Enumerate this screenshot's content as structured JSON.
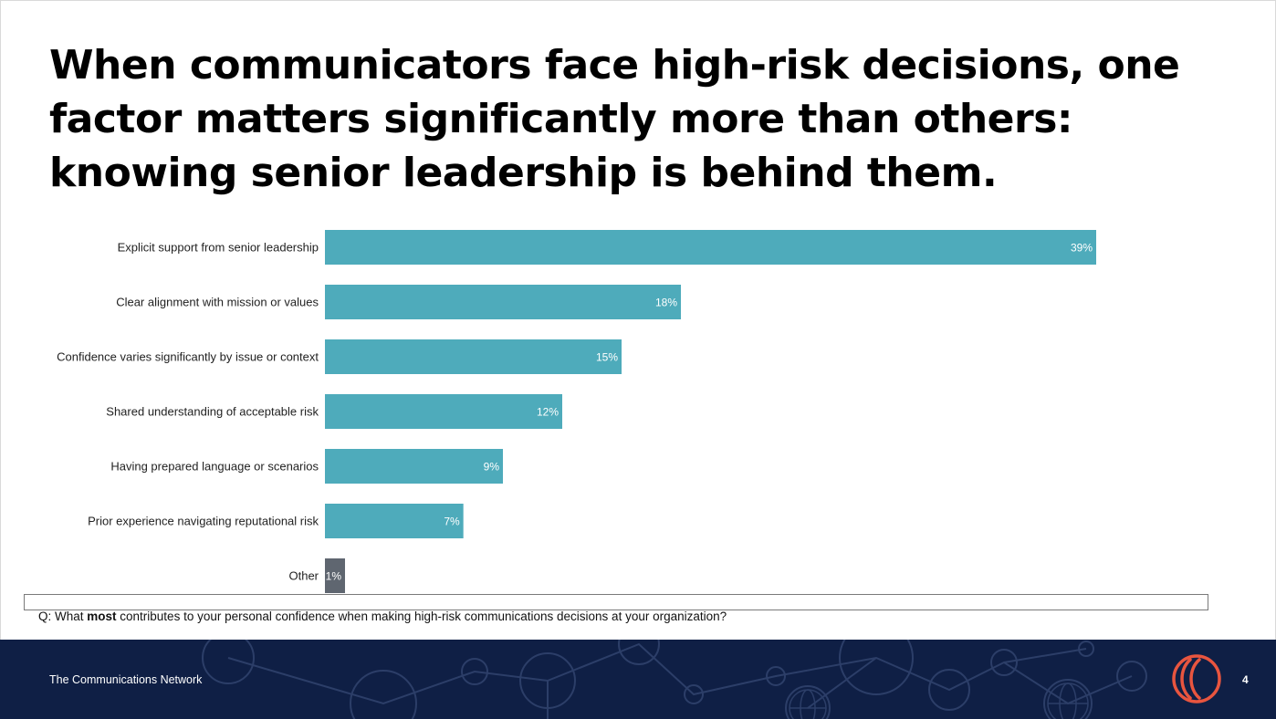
{
  "headline": "When communicators face high-risk decisions, one factor matters significantly more than others: knowing senior leadership is behind them.",
  "question": {
    "prefix": "Q: What ",
    "bold": "most",
    "suffix": " contributes to your personal confidence when making high-risk communications decisions at your organization?"
  },
  "footer": {
    "org_name": "The Communications Network",
    "page_number": "4"
  },
  "colors": {
    "primary_bar": "#4eabbb",
    "other_bar": "#5f6670",
    "footer_bg": "#0f1f45",
    "logo": "#e8553f"
  },
  "chart_data": {
    "type": "bar",
    "orientation": "horizontal",
    "categories": [
      "Explicit support from senior leadership",
      "Clear alignment with mission or values",
      "Confidence varies significantly by issue or context",
      "Shared understanding of acceptable risk",
      "Having prepared language or scenarios",
      "Prior experience navigating reputational risk",
      "Other"
    ],
    "values": [
      39,
      18,
      15,
      12,
      9,
      7,
      1
    ],
    "value_labels": [
      "39%",
      "18%",
      "15%",
      "12%",
      "9%",
      "7%",
      "1%"
    ],
    "unit": "%",
    "title": "",
    "xlabel": "",
    "ylabel": "",
    "grid": false,
    "legend": "none"
  }
}
